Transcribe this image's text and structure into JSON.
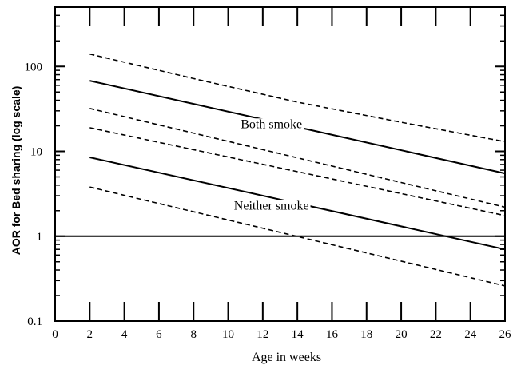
{
  "chart_data": {
    "type": "line",
    "title": "",
    "xlabel": "Age in weeks",
    "ylabel": "AOR for Bed sharing (log scale)",
    "xlim": [
      0,
      26
    ],
    "ylim": [
      0.1,
      500
    ],
    "yscale": "log",
    "xticks": [
      0,
      2,
      4,
      6,
      8,
      10,
      12,
      14,
      16,
      18,
      20,
      22,
      24,
      26
    ],
    "xtick_labels": [
      "0",
      "2",
      "4",
      "6",
      "8",
      "10",
      "12",
      "14",
      "16",
      "18",
      "20",
      "22",
      "24",
      "26"
    ],
    "yticks": [
      0.1,
      1,
      10,
      100
    ],
    "ytick_labels": [
      "0.1",
      "1",
      "10",
      "100"
    ],
    "grid": false,
    "legend": "none",
    "reference_line": {
      "y": 1,
      "style": "solid"
    },
    "series": [
      {
        "style": "solid",
        "x": [
          2,
          26
        ],
        "y": [
          68,
          5.5
        ]
      },
      {
        "style": "dashed",
        "x": [
          2,
          8,
          14,
          20,
          26
        ],
        "y": [
          140,
          72,
          38,
          22,
          13
        ]
      },
      {
        "style": "dashed",
        "x": [
          2,
          26
        ],
        "y": [
          32,
          2.2
        ]
      },
      {
        "style": "solid",
        "x": [
          2,
          26
        ],
        "y": [
          8.5,
          0.7
        ]
      },
      {
        "style": "dashed",
        "x": [
          2,
          26
        ],
        "y": [
          19,
          1.75
        ]
      },
      {
        "style": "dashed",
        "x": [
          2,
          26
        ],
        "y": [
          3.8,
          0.26
        ]
      }
    ],
    "annotations": [
      {
        "text": "Both smoke",
        "x": 12.5,
        "y": 21
      },
      {
        "text": "Neither smoke",
        "x": 12.5,
        "y": 2.3
      }
    ]
  }
}
